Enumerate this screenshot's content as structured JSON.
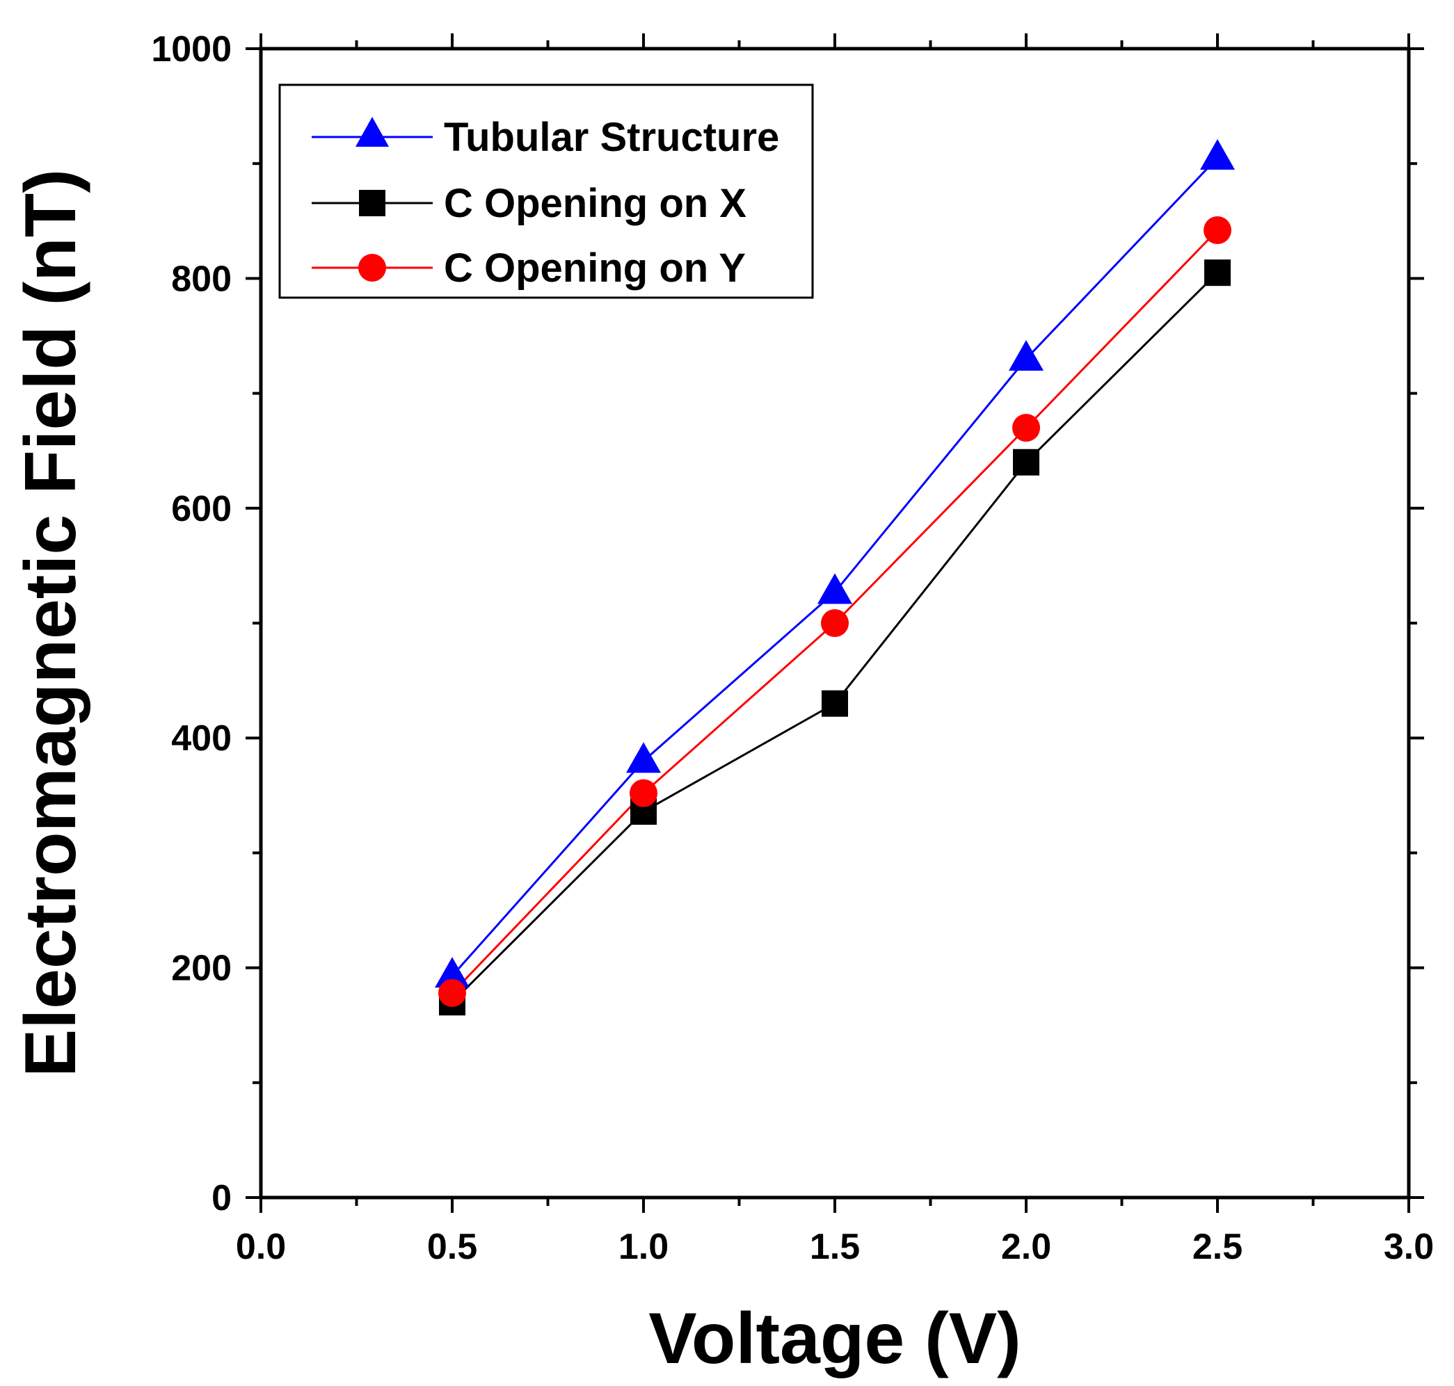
{
  "chart_data": {
    "type": "line",
    "title": "",
    "xlabel": "Voltage (V)",
    "ylabel": "Electromagnetic Field (nT)",
    "xlim": [
      0.0,
      3.0
    ],
    "ylim": [
      0,
      1000
    ],
    "x_ticks": [
      "0.0",
      "0.5",
      "1.0",
      "1.5",
      "2.0",
      "2.5",
      "3.0"
    ],
    "x_tick_values": [
      0.0,
      0.5,
      1.0,
      1.5,
      2.0,
      2.5,
      3.0
    ],
    "y_ticks": [
      "0",
      "200",
      "400",
      "600",
      "800",
      "1000"
    ],
    "y_tick_values": [
      0,
      200,
      400,
      600,
      800,
      1000
    ],
    "grid": false,
    "legend_position": "top-left",
    "x": [
      0.5,
      1.0,
      1.5,
      2.0,
      2.5
    ],
    "series": [
      {
        "name": "Tubular Structure",
        "color": "#0000ff",
        "marker": "triangle",
        "values": [
          193,
          380,
          527,
          730,
          905
        ]
      },
      {
        "name": "C Opening on X",
        "color": "#000000",
        "marker": "square",
        "values": [
          170,
          336,
          430,
          640,
          805
        ]
      },
      {
        "name": "C Opening on Y",
        "color": "#ff0000",
        "marker": "circle",
        "values": [
          178,
          352,
          500,
          670,
          842
        ]
      }
    ]
  }
}
